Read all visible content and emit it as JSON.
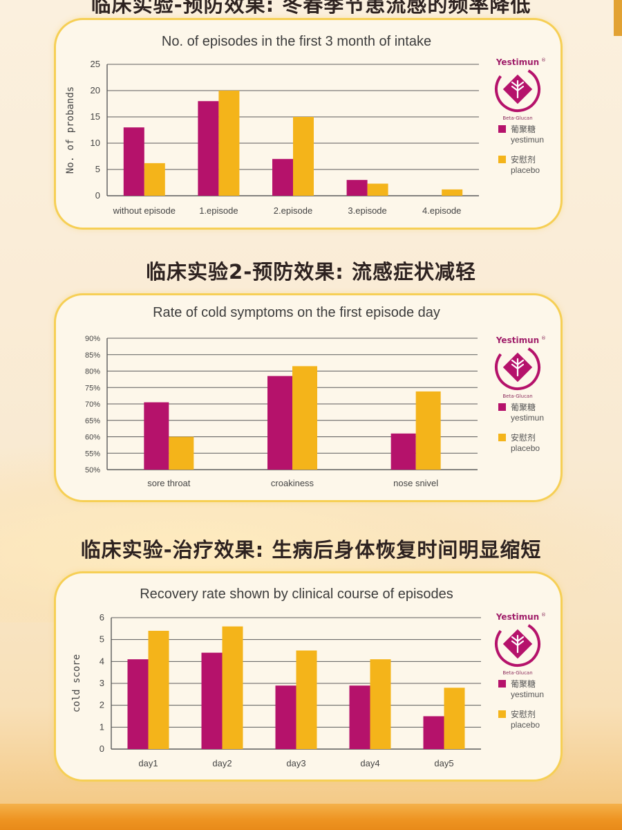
{
  "colors": {
    "yestimun": "#b5126b",
    "placebo": "#f4b41a",
    "card_border": "#f6cf55",
    "grid": "#5a5a5a"
  },
  "sections": [
    {
      "title": "临床实验-预防效果: 冬春季节患流感的频率降低"
    },
    {
      "title": "临床实验2-预防效果: 流感症状减轻"
    },
    {
      "title": "临床实验-治疗效果: 生病后身体恢复时间明显缩短"
    }
  ],
  "logo": {
    "name": "Yestimun",
    "trademark": "®",
    "subtitle": "Beta-Glucan"
  },
  "legend": [
    {
      "cn": "葡聚糖",
      "en": "yestimun"
    },
    {
      "cn": "安慰剂",
      "en": "placebo"
    }
  ],
  "chart_data": [
    {
      "type": "bar",
      "title": "No. of episodes in the first 3 month of intake",
      "ylabel": "No. of probands",
      "xlabel": "",
      "categories": [
        "without episode",
        "1.episode",
        "2.episode",
        "3.episode",
        "4.episode"
      ],
      "series": [
        {
          "name": "yestimun",
          "values": [
            13,
            18,
            7,
            3,
            0
          ]
        },
        {
          "name": "placebo",
          "values": [
            6.2,
            20,
            15,
            2.3,
            1.2
          ]
        }
      ],
      "ylim": [
        0,
        25
      ],
      "yticks": [
        "0",
        "5",
        "10",
        "15",
        "20",
        "25"
      ],
      "grid": true,
      "legend_position": "right"
    },
    {
      "type": "bar",
      "title": "Rate of cold symptoms on the first episode day",
      "ylabel": "",
      "xlabel": "",
      "categories": [
        "sore throat",
        "croakiness",
        "nose snivel"
      ],
      "series": [
        {
          "name": "yestimun",
          "values": [
            70.5,
            78.5,
            61
          ]
        },
        {
          "name": "placebo",
          "values": [
            60,
            81.5,
            73.8
          ]
        }
      ],
      "ylim": [
        50,
        90
      ],
      "yticks": [
        "50%",
        "55%",
        "60%",
        "65%",
        "70%",
        "75%",
        "80%",
        "85%",
        "90%"
      ],
      "grid": true,
      "legend_position": "right"
    },
    {
      "type": "bar",
      "title": "Recovery rate shown by clinical course of episodes",
      "ylabel": "cold score",
      "xlabel": "",
      "categories": [
        "day1",
        "day2",
        "day3",
        "day4",
        "day5"
      ],
      "series": [
        {
          "name": "yestimun",
          "values": [
            4.1,
            4.4,
            2.9,
            2.9,
            1.5
          ]
        },
        {
          "name": "placebo",
          "values": [
            5.4,
            5.6,
            4.5,
            4.1,
            2.8
          ]
        }
      ],
      "ylim": [
        0,
        6
      ],
      "yticks": [
        "0",
        "1",
        "2",
        "3",
        "4",
        "5",
        "6"
      ],
      "grid": true,
      "legend_position": "right"
    }
  ]
}
